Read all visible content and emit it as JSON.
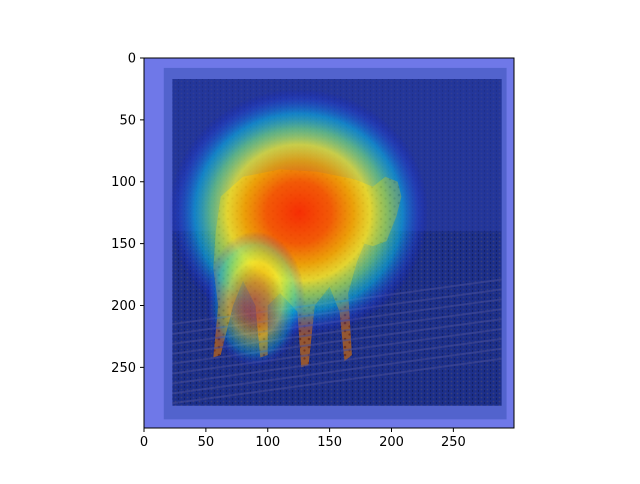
{
  "chart_data": {
    "type": "heatmap",
    "title": "",
    "xlabel": "",
    "ylabel": "",
    "xlim": [
      0,
      299
    ],
    "ylim": [
      299,
      0
    ],
    "y_axis_inverted": true,
    "x_ticks": [
      0,
      50,
      100,
      150,
      200,
      250
    ],
    "y_ticks": [
      0,
      50,
      100,
      150,
      200,
      250
    ],
    "x_tick_labels": [
      "0",
      "50",
      "100",
      "150",
      "200",
      "250"
    ],
    "y_tick_labels": [
      "0",
      "50",
      "100",
      "150",
      "200",
      "250"
    ],
    "grid": false,
    "legend": "none",
    "colormap": "jet",
    "colormap_colors": [
      "#00007f",
      "#0000ff",
      "#007fff",
      "#00ffff",
      "#7fff7f",
      "#ffff00",
      "#ff7f00",
      "#ff0000",
      "#7f0000"
    ],
    "overlay_description_hidden": true,
    "peak_center": [
      125,
      125
    ],
    "peak_radius": [
      105,
      100
    ],
    "image_frame": [
      17,
      281,
      23,
      289
    ],
    "background_colors": {
      "border": "#6f78e8",
      "inner_frame": "#4e5fc8",
      "ground": "#1c2f8a"
    }
  }
}
